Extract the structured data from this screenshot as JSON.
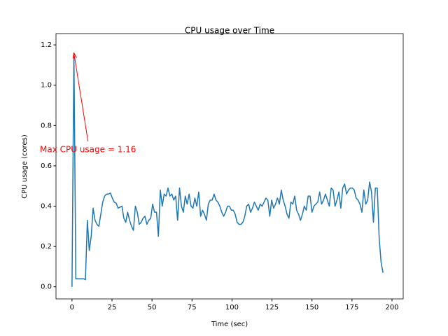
{
  "chart_data": {
    "type": "line",
    "title": "CPU usage over Time",
    "x_label": "Time (sec)",
    "y_label": "CPU usage (cores)",
    "color": "#1f77b4",
    "x": [
      0,
      1.2,
      2.4,
      3.6,
      4.8,
      6,
      7.2,
      8.4,
      9.6,
      10.8,
      12,
      13.2,
      14.4,
      15.6,
      16.8,
      18,
      19.2,
      20.4,
      21.6,
      22.8,
      24,
      25.2,
      26.4,
      27.6,
      28.8,
      30,
      31.2,
      32.4,
      33.6,
      34.8,
      36,
      37.2,
      38.4,
      39.6,
      40.8,
      42,
      43.2,
      44.4,
      45.6,
      46.8,
      48,
      49.2,
      50.4,
      51.6,
      52.8,
      54,
      55.2,
      56.4,
      57.6,
      58.8,
      60,
      61.2,
      62.4,
      63.6,
      64.8,
      66,
      67.2,
      68.4,
      69.6,
      70.8,
      72,
      73.2,
      74.4,
      75.6,
      76.8,
      78,
      79.2,
      80.4,
      81.6,
      82.8,
      84,
      85.2,
      86.4,
      87.6,
      88.8,
      90,
      91.2,
      92.4,
      93.6,
      94.8,
      96,
      97.2,
      98.4,
      99.6,
      100.8,
      102,
      103.2,
      104.4,
      105.6,
      106.8,
      108,
      109.2,
      110.4,
      111.6,
      112.8,
      114,
      115.2,
      116.4,
      117.6,
      118.8,
      120,
      121.2,
      122.4,
      123.6,
      124.8,
      126,
      127.2,
      128.4,
      129.6,
      130.8,
      132,
      133.2,
      134.4,
      135.6,
      136.8,
      138,
      139.2,
      140.4,
      141.6,
      142.8,
      144,
      145.2,
      146.4,
      147.6,
      148.8,
      150,
      151.2,
      152.4,
      153.6,
      154.8,
      156,
      157.2,
      158.4,
      159.6,
      160.8,
      162,
      163.2,
      164.4,
      165.6,
      166.8,
      168,
      169.2,
      170.4,
      171.6,
      172.8,
      174,
      175.2,
      176.4,
      177.6,
      178.8,
      180,
      181.2,
      182.4,
      183.6,
      184.8,
      186,
      187.2,
      188.4,
      189.6,
      190.8,
      192,
      193.2,
      194.4
    ],
    "values": [
      0,
      1.16,
      0.04,
      0.04,
      0.04,
      0.04,
      0.04,
      0.035,
      0.33,
      0.18,
      0.25,
      0.39,
      0.33,
      0.31,
      0.3,
      0.36,
      0.42,
      0.45,
      0.46,
      0.46,
      0.465,
      0.44,
      0.42,
      0.415,
      0.39,
      0.395,
      0.4,
      0.34,
      0.32,
      0.37,
      0.33,
      0.3,
      0.28,
      0.4,
      0.37,
      0.31,
      0.32,
      0.34,
      0.35,
      0.31,
      0.33,
      0.34,
      0.41,
      0.37,
      0.37,
      0.25,
      0.48,
      0.4,
      0.46,
      0.45,
      0.49,
      0.45,
      0.46,
      0.43,
      0.45,
      0.33,
      0.49,
      0.4,
      0.37,
      0.45,
      0.41,
      0.46,
      0.4,
      0.39,
      0.44,
      0.4,
      0.47,
      0.35,
      0.38,
      0.36,
      0.33,
      0.41,
      0.43,
      0.43,
      0.46,
      0.43,
      0.42,
      0.4,
      0.37,
      0.35,
      0.37,
      0.4,
      0.4,
      0.38,
      0.38,
      0.36,
      0.32,
      0.31,
      0.31,
      0.32,
      0.35,
      0.4,
      0.41,
      0.37,
      0.39,
      0.42,
      0.4,
      0.38,
      0.41,
      0.4,
      0.42,
      0.44,
      0.43,
      0.35,
      0.43,
      0.39,
      0.41,
      0.44,
      0.41,
      0.48,
      0.43,
      0.4,
      0.36,
      0.34,
      0.42,
      0.41,
      0.45,
      0.38,
      0.36,
      0.33,
      0.36,
      0.4,
      0.38,
      0.45,
      0.45,
      0.37,
      0.4,
      0.41,
      0.42,
      0.47,
      0.41,
      0.43,
      0.46,
      0.43,
      0.4,
      0.49,
      0.48,
      0.4,
      0.43,
      0.47,
      0.39,
      0.49,
      0.51,
      0.46,
      0.48,
      0.49,
      0.49,
      0.48,
      0.44,
      0.43,
      0.41,
      0.37,
      0.48,
      0.41,
      0.43,
      0.52,
      0.47,
      0.32,
      0.49,
      0.49,
      0.24,
      0.12,
      0.07
    ],
    "xlim": [
      -10,
      207
    ],
    "ylim": [
      -0.06,
      1.256
    ],
    "xticks": [
      0,
      25,
      50,
      75,
      100,
      125,
      150,
      175,
      200
    ],
    "yticks": [
      {
        "value": 0,
        "label": "0.0"
      },
      {
        "value": 0.2,
        "label": "0.2"
      },
      {
        "value": 0.4,
        "label": "0.4"
      },
      {
        "value": 0.6,
        "label": "0.6"
      },
      {
        "value": 0.8,
        "label": "0.8"
      },
      {
        "value": 1.0,
        "label": "1.0"
      },
      {
        "value": 1.2,
        "label": "1.2"
      }
    ],
    "annotation": {
      "text": "Max CPU usage = 1.16",
      "color": "#ff0000",
      "x": 1.2,
      "y": 1.16,
      "text_x": 10,
      "text_y": 0.68
    }
  }
}
